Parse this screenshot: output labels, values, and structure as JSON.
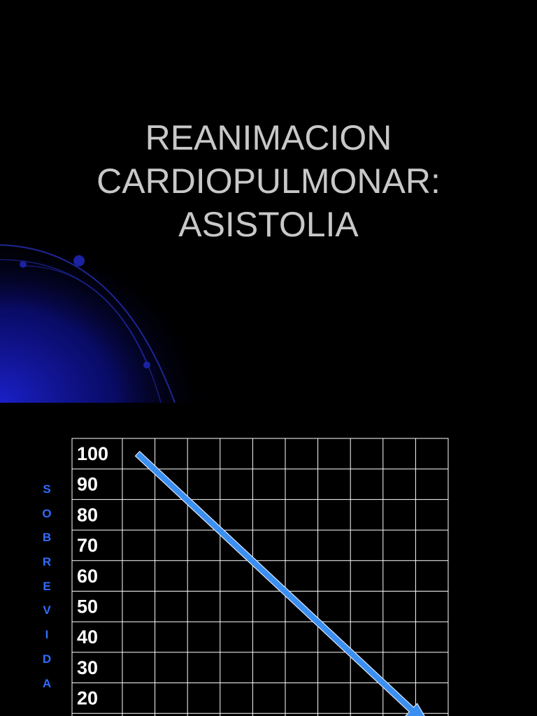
{
  "slide": {
    "title_lines": [
      "REANIMACION",
      "CARDIOPULMONAR:",
      "ASISTOLIA"
    ]
  },
  "colors": {
    "background": "#000000",
    "title": "#c8c8c8",
    "grid": "#ffffff",
    "arrow": "#3a8ff0",
    "axis_label": "#2f6dff",
    "decoration": "#0a14a0"
  },
  "chart_data": {
    "type": "line",
    "ylabel": "SOBREVIDA",
    "ylabel_letters": [
      "S",
      "O",
      "B",
      "R",
      "E",
      "V",
      "I",
      "D",
      "A"
    ],
    "yticks": [
      "100",
      "90",
      "80",
      "70",
      "60",
      "50",
      "40",
      "30",
      "20"
    ],
    "ylim": [
      10,
      100
    ],
    "grid": true,
    "series": [
      {
        "x": [
          1,
          9.5
        ],
        "y": [
          100,
          10
        ],
        "style": "arrow"
      }
    ],
    "x_columns": 10
  }
}
